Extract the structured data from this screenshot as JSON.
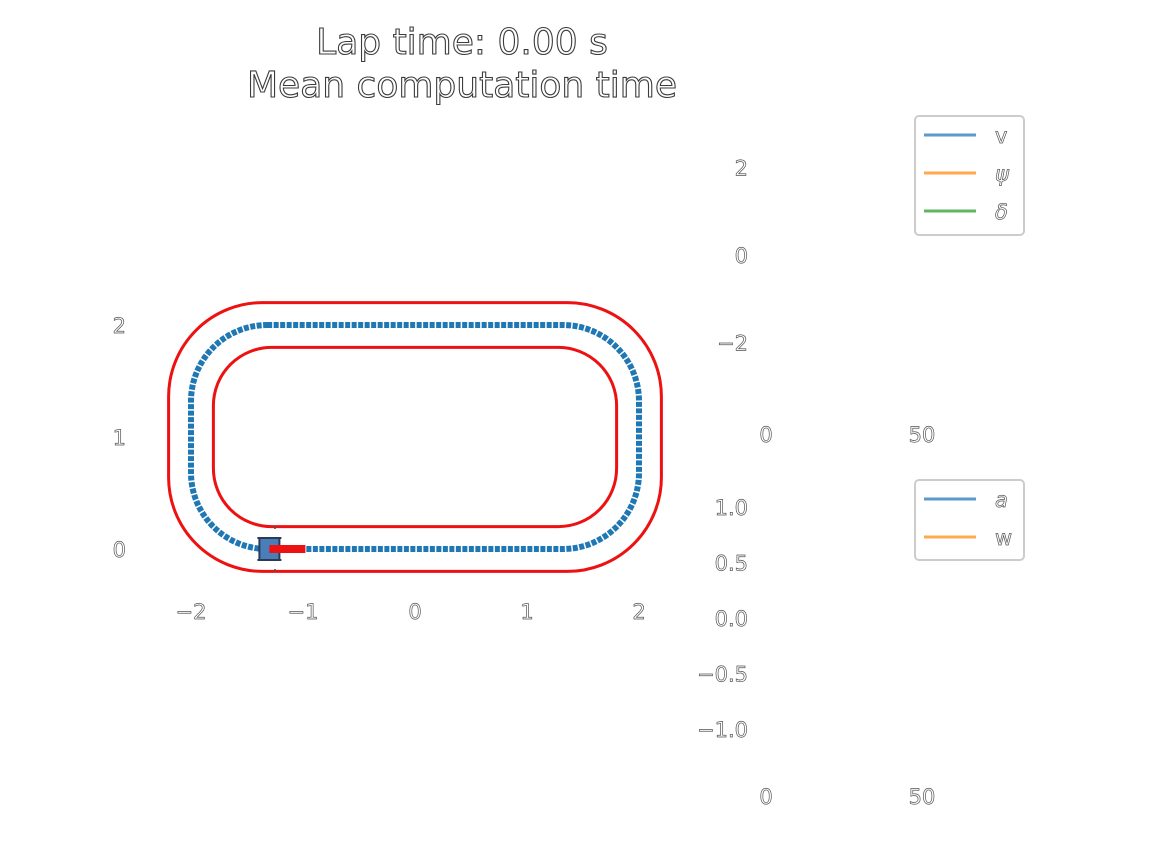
{
  "title": {
    "line1": "Lap time: 0.00 s",
    "line2": "Mean computation time"
  },
  "chart_data": [
    {
      "type": "line",
      "name": "track",
      "xticks": [
        -2,
        -1,
        0,
        1,
        2
      ],
      "xtick_labels": [
        "−2",
        "−1",
        "0",
        "1",
        "2"
      ],
      "yticks": [
        0,
        1,
        2
      ],
      "ytick_labels": [
        "0",
        "1",
        "2"
      ],
      "xlim": [
        -2.25,
        2.25
      ],
      "ylim": [
        -0.4,
        2.4
      ],
      "track_colors": {
        "boundary": "#ee1111",
        "centerline": "#1f77b4",
        "car_body": "#4a7ebb",
        "car_heading": "#ee1111"
      },
      "outer_boundary": {
        "straight_half_length": 1.2,
        "half_width": 1.2,
        "corner_radius": 0.2,
        "center": [
          0,
          1.0
        ]
      },
      "inner_boundary": {
        "straight_half_length": 1.2,
        "half_width": 0.8,
        "corner_radius": 0.8,
        "center": [
          0,
          1.0
        ]
      },
      "centerline": {
        "straight_half_length": 1.2,
        "half_width": 1.0,
        "corner_radius": 1.0,
        "center": [
          0,
          1.0
        ]
      },
      "car": {
        "x": -1.3,
        "y": 0.0,
        "heading_deg": 0
      }
    },
    {
      "type": "line",
      "name": "states",
      "legend": [
        "v",
        "ψ",
        "δ"
      ],
      "legend_colors": [
        "#5b9ac9",
        "#ffa850",
        "#62b562"
      ],
      "legend_placement": "top-right",
      "xticks": [
        0,
        50
      ],
      "xtick_labels": [
        "0",
        "50"
      ],
      "yticks": [
        -2,
        0,
        2
      ],
      "ytick_labels": [
        "−2",
        "0",
        "2"
      ],
      "ylim": [
        -2.9,
        3.1
      ],
      "xlim": [
        0,
        100
      ],
      "series": []
    },
    {
      "type": "line",
      "name": "inputs",
      "legend": [
        "a",
        "w"
      ],
      "legend_colors": [
        "#5b9ac9",
        "#ffa850"
      ],
      "legend_placement": "top-right",
      "xticks": [
        0,
        50
      ],
      "xtick_labels": [
        "0",
        "50"
      ],
      "yticks": [
        1.0,
        0.5,
        0.0,
        -0.5,
        -1.0
      ],
      "ytick_labels": [
        "1.0",
        "0.5",
        "0.0",
        "−0.5",
        "−1.0"
      ],
      "ylim": [
        -1.5,
        1.3
      ],
      "xlim": [
        0,
        100
      ],
      "series": []
    }
  ]
}
